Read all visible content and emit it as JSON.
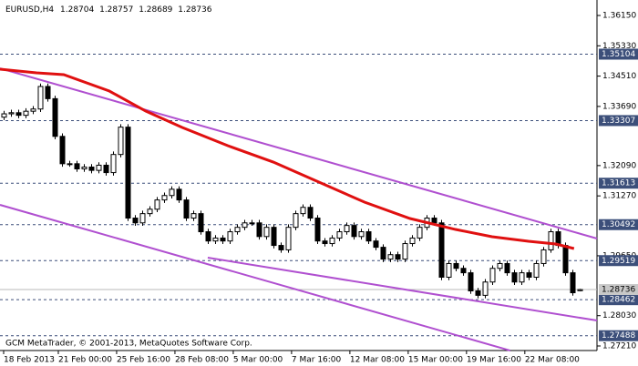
{
  "chart_data": {
    "type": "candlestick",
    "header": {
      "symbol": "EURUSD,H4",
      "open": 1.28704,
      "high": 1.28757,
      "low": 1.28689,
      "close": 1.28736
    },
    "copyright": "GCM MetaTrader, © 2001-2013, MetaQuotes Software Corp.",
    "xlim": [
      -0.5,
      81.4
    ],
    "ylim": [
      1.27087,
      1.36569
    ],
    "yticks": [
      {
        "value": 1.3615,
        "label": "1.36150"
      },
      {
        "value": 1.3533,
        "label": "1.35330"
      },
      {
        "value": 1.3451,
        "label": "1.34510"
      },
      {
        "value": 1.3369,
        "label": "1.33690"
      },
      {
        "value": 1.3209,
        "label": "1.32090"
      },
      {
        "value": 1.3127,
        "label": "1.31270"
      },
      {
        "value": 1.2965,
        "label": "1.29650"
      },
      {
        "value": 1.2803,
        "label": "1.28030"
      },
      {
        "value": 1.2721,
        "label": "1.27210"
      }
    ],
    "xticks": [
      {
        "value": 0,
        "label": "18 Feb 2013"
      },
      {
        "value": 7.5,
        "label": "21 Feb 00:00"
      },
      {
        "value": 15.5,
        "label": "25 Feb 16:00"
      },
      {
        "value": 23.5,
        "label": "28 Feb 08:00"
      },
      {
        "value": 31.5,
        "label": "5 Mar 00:00"
      },
      {
        "value": 39.5,
        "label": "7 Mar 16:00"
      },
      {
        "value": 47.5,
        "label": "12 Mar 08:00"
      },
      {
        "value": 55.5,
        "label": "15 Mar 00:00"
      },
      {
        "value": 63.5,
        "label": "19 Mar 16:00"
      },
      {
        "value": 71.5,
        "label": "22 Mar 08:00"
      }
    ],
    "levels": [
      {
        "value": 1.35104,
        "label": "1.35104"
      },
      {
        "value": 1.33307,
        "label": "1.33307"
      },
      {
        "value": 1.31613,
        "label": "1.31613"
      },
      {
        "value": 1.30492,
        "label": "1.30492"
      },
      {
        "value": 1.29519,
        "label": "1.29519"
      },
      {
        "value": 1.28462,
        "label": "1.28462"
      },
      {
        "value": 1.27488,
        "label": "1.27488"
      }
    ],
    "current_price": {
      "value": 1.28736,
      "label": "1.28736"
    },
    "level_color": "#3c4f7a",
    "candles": {
      "open": [
        1.334,
        1.3349,
        1.3352,
        1.3345,
        1.3356,
        1.3362,
        1.3423,
        1.339,
        1.3288,
        1.3214,
        1.3214,
        1.32,
        1.3205,
        1.3196,
        1.321,
        1.319,
        1.3239,
        1.3313,
        1.3067,
        1.3054,
        1.3079,
        1.3091,
        1.3116,
        1.3128,
        1.3145,
        1.3116,
        1.3067,
        1.3079,
        1.303,
        1.3005,
        1.3013,
        1.3005,
        1.303,
        1.3042,
        1.3054,
        1.3054,
        1.3017,
        1.3042,
        1.2993,
        1.2981,
        1.3042,
        1.3079,
        1.3096,
        1.3067,
        1.3005,
        1.2998,
        1.3013,
        1.303,
        1.3047,
        1.3017,
        1.303,
        1.3005,
        1.2988,
        1.2956,
        1.2968,
        1.2956,
        1.2998,
        1.3013,
        1.3042,
        1.3067,
        1.3054,
        1.2907,
        1.2944,
        1.2931,
        1.2919,
        1.287,
        1.2858,
        1.2894,
        1.2931,
        1.2944,
        1.2919,
        1.2894,
        1.2919,
        1.2907,
        1.2944,
        1.2981,
        1.303,
        1.2993,
        1.2919,
        1.28704
      ],
      "high": [
        1.3357,
        1.336,
        1.336,
        1.3364,
        1.337,
        1.3431,
        1.3431,
        1.3398,
        1.3296,
        1.3222,
        1.3222,
        1.3213,
        1.3213,
        1.3218,
        1.3218,
        1.3247,
        1.3321,
        1.3321,
        1.3075,
        1.3087,
        1.3099,
        1.3124,
        1.3136,
        1.3153,
        1.3153,
        1.3124,
        1.3087,
        1.3087,
        1.3038,
        1.3021,
        1.3021,
        1.3038,
        1.305,
        1.3062,
        1.3062,
        1.3062,
        1.305,
        1.305,
        1.3001,
        1.305,
        1.3087,
        1.3104,
        1.3104,
        1.3075,
        1.3013,
        1.3021,
        1.3038,
        1.3055,
        1.3055,
        1.3038,
        1.3038,
        1.3013,
        1.2996,
        1.2976,
        1.2976,
        1.3006,
        1.3021,
        1.305,
        1.3075,
        1.3075,
        1.3062,
        1.2952,
        1.2952,
        1.2939,
        1.2927,
        1.2878,
        1.2902,
        1.2939,
        1.2952,
        1.2952,
        1.2927,
        1.2927,
        1.2927,
        1.2952,
        1.2989,
        1.3038,
        1.3038,
        1.3001,
        1.2927,
        1.28757
      ],
      "low": [
        1.3332,
        1.3341,
        1.3337,
        1.3337,
        1.3348,
        1.3354,
        1.3382,
        1.328,
        1.3206,
        1.3206,
        1.3192,
        1.3192,
        1.3188,
        1.3188,
        1.3182,
        1.3182,
        1.3231,
        1.3059,
        1.3046,
        1.3046,
        1.3071,
        1.3083,
        1.3108,
        1.312,
        1.3108,
        1.3059,
        1.3059,
        1.3022,
        1.2997,
        1.2997,
        1.2997,
        1.2997,
        1.3022,
        1.3034,
        1.3046,
        1.3009,
        1.3009,
        1.2985,
        1.2973,
        1.2973,
        1.3034,
        1.3071,
        1.3059,
        1.2997,
        1.299,
        1.299,
        1.3005,
        1.3022,
        1.3009,
        1.3009,
        1.2997,
        1.298,
        1.2948,
        1.2948,
        1.2948,
        1.2948,
        1.299,
        1.3005,
        1.3034,
        1.3046,
        1.2899,
        1.2899,
        1.2923,
        1.2911,
        1.2862,
        1.285,
        1.285,
        1.2886,
        1.2923,
        1.2911,
        1.2886,
        1.2886,
        1.2899,
        1.2899,
        1.2936,
        1.2973,
        1.2985,
        1.2911,
        1.2857,
        1.28689
      ],
      "close": [
        1.3349,
        1.3352,
        1.3345,
        1.3356,
        1.3362,
        1.3423,
        1.339,
        1.3288,
        1.3214,
        1.3214,
        1.32,
        1.3205,
        1.3196,
        1.321,
        1.319,
        1.3239,
        1.3313,
        1.3067,
        1.3054,
        1.3079,
        1.3091,
        1.3116,
        1.3128,
        1.3145,
        1.3116,
        1.3067,
        1.3079,
        1.303,
        1.3005,
        1.3013,
        1.3005,
        1.303,
        1.3042,
        1.3054,
        1.3054,
        1.3017,
        1.3042,
        1.2993,
        1.2981,
        1.3042,
        1.3079,
        1.3096,
        1.3067,
        1.3005,
        1.2998,
        1.3013,
        1.303,
        1.3047,
        1.3017,
        1.303,
        1.3005,
        1.2988,
        1.2956,
        1.2968,
        1.2956,
        1.2998,
        1.3013,
        1.3042,
        1.3067,
        1.3054,
        1.2907,
        1.2944,
        1.2931,
        1.2919,
        1.287,
        1.2858,
        1.2894,
        1.2931,
        1.2944,
        1.2919,
        1.2894,
        1.2919,
        1.2907,
        1.2944,
        1.2981,
        1.303,
        1.2993,
        1.2919,
        1.2865,
        1.28736
      ]
    },
    "moving_average": {
      "color": "#e01010",
      "x": [
        -0.5,
        4.5,
        8.25,
        14.5,
        19.5,
        24.5,
        30.75,
        37,
        43.25,
        49.5,
        55.75,
        62,
        67,
        72,
        75.75,
        78.25
      ],
      "values": [
        1.34697,
        1.34598,
        1.34549,
        1.34106,
        1.33564,
        1.3312,
        1.32628,
        1.32184,
        1.31643,
        1.31101,
        1.30658,
        1.30362,
        1.30165,
        1.30042,
        1.29968,
        1.29845
      ]
    },
    "trendlines": {
      "color": "#b050d0",
      "lines": [
        {
          "x": [
            -0.5,
            81.4
          ],
          "y": [
            1.34721,
            1.30116
          ]
        },
        {
          "x": [
            -0.5,
            69.5
          ],
          "y": [
            1.31027,
            1.27086
          ]
        },
        {
          "x": [
            28,
            81.4
          ],
          "y": [
            1.29598,
            1.27899
          ]
        }
      ]
    }
  }
}
